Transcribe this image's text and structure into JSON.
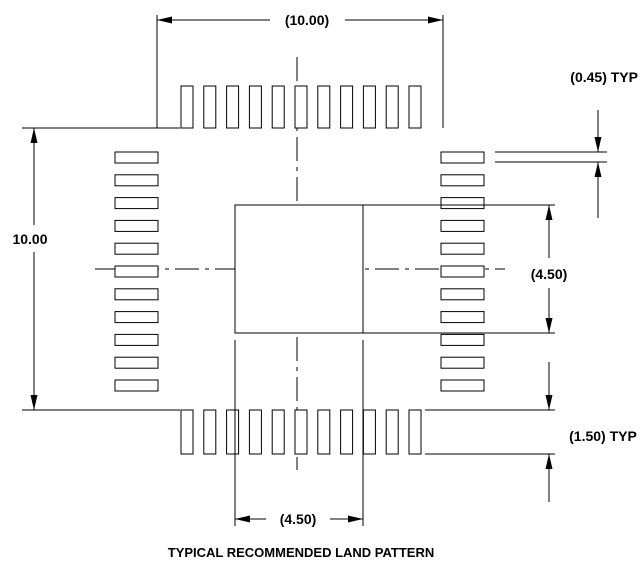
{
  "dimensions": {
    "top_width": "(10.00)",
    "left_height": "10.00",
    "pitch": "(0.45) TYP",
    "pad_width": "(4.50)",
    "pad_length": "(1.50) TYP",
    "bottom_width": "(4.50)"
  },
  "caption": "TYPICAL RECOMMENDED LAND PATTERN",
  "colors": {
    "ink": "#000000",
    "background": "#ffffff"
  }
}
